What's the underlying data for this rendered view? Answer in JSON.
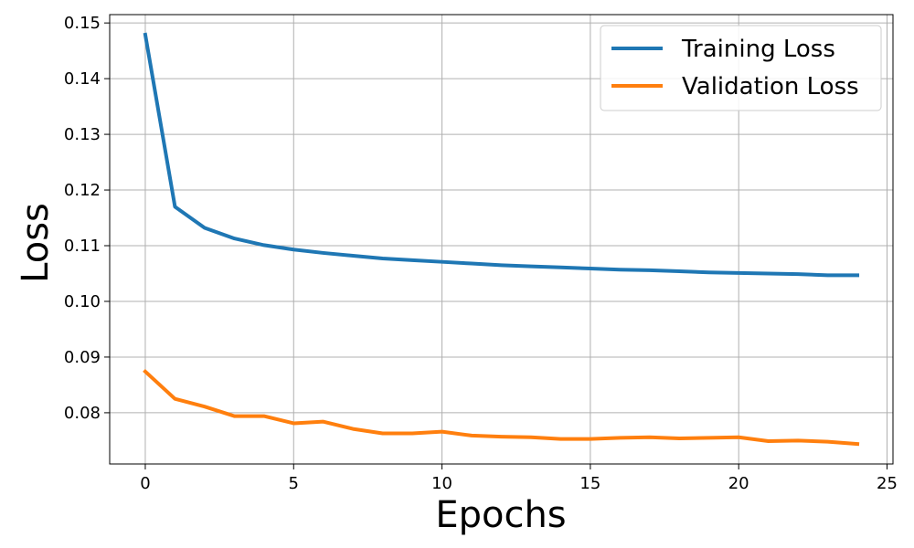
{
  "chart_data": {
    "type": "line",
    "xlabel": "Epochs",
    "ylabel": "Loss",
    "xlim": [
      -1.2,
      25.2
    ],
    "ylim": [
      0.0708,
      0.1515
    ],
    "xticks": [
      0,
      5,
      10,
      15,
      20,
      25
    ],
    "yticks": [
      0.08,
      0.09,
      0.1,
      0.11,
      0.12,
      0.13,
      0.14,
      0.15
    ],
    "ytick_labels": [
      "0.08",
      "0.09",
      "0.10",
      "0.11",
      "0.12",
      "0.13",
      "0.14",
      "0.15"
    ],
    "grid": true,
    "legend_position": "top-right",
    "x": [
      0,
      1,
      2,
      3,
      4,
      5,
      6,
      7,
      8,
      9,
      10,
      11,
      12,
      13,
      14,
      15,
      16,
      17,
      18,
      19,
      20,
      21,
      22,
      23,
      24
    ],
    "series": [
      {
        "name": "Training Loss",
        "color": "#1f77b4",
        "values": [
          0.1479,
          0.117,
          0.1132,
          0.1113,
          0.1101,
          0.1093,
          0.1087,
          0.1082,
          0.1077,
          0.1074,
          0.1071,
          0.1068,
          0.1065,
          0.1063,
          0.1061,
          0.1059,
          0.1057,
          0.1056,
          0.1054,
          0.1052,
          0.1051,
          0.105,
          0.1049,
          0.1047,
          0.1047
        ]
      },
      {
        "name": "Validation Loss",
        "color": "#ff7f0e",
        "values": [
          0.0874,
          0.0825,
          0.0811,
          0.0794,
          0.0794,
          0.0781,
          0.0784,
          0.0771,
          0.0763,
          0.0763,
          0.0766,
          0.0759,
          0.0757,
          0.0756,
          0.0753,
          0.0753,
          0.0755,
          0.0756,
          0.0754,
          0.0755,
          0.0756,
          0.0749,
          0.075,
          0.0748,
          0.0744
        ]
      }
    ]
  }
}
